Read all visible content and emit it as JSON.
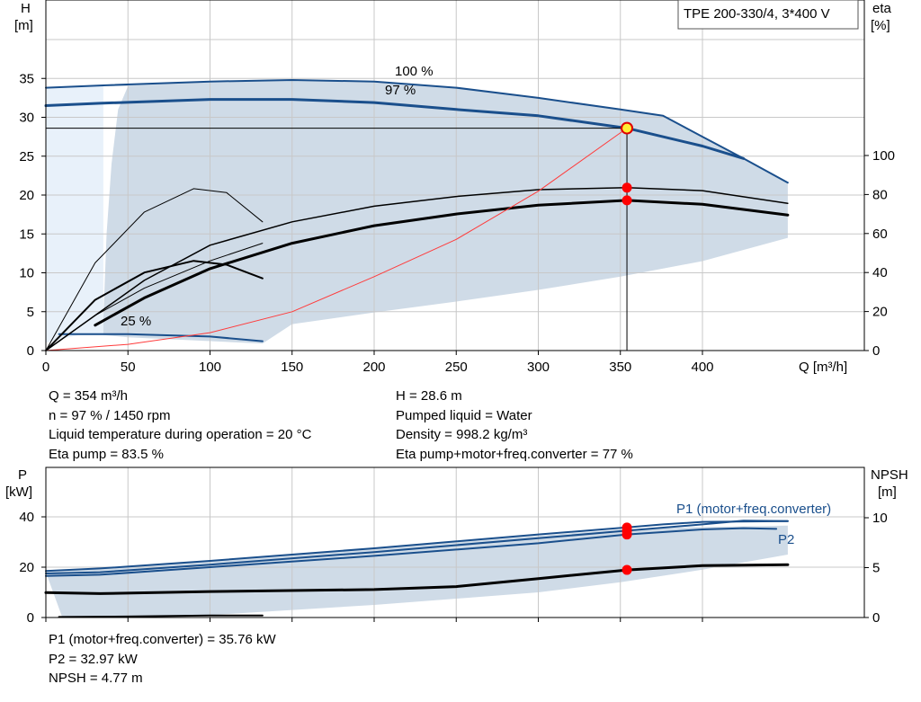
{
  "info_main": {
    "left": [
      "Q = 354 m³/h",
      "n = 97 % / 1450 rpm",
      "Liquid temperature during operation = 20 °C",
      "Eta pump = 83.5 %"
    ],
    "right": [
      "H = 28.6 m",
      "Pumped liquid = Water",
      "Density = 998.2 kg/m³",
      "Eta pump+motor+freq.converter = 77 %"
    ]
  },
  "info_bottom": [
    "P1 (motor+freq.converter) = 35.76 kW",
    "P2 = 32.97 kW",
    "NPSH = 4.77 m"
  ],
  "colors": {
    "curve": "#1a4f8c",
    "envelope": "#cfdbe7",
    "envelope_light": "#e8f1fa",
    "system": "#ff3b3b",
    "marker": "#ff0000",
    "duty": "#ffee33"
  },
  "chart_data": [
    {
      "type": "line",
      "title": "TPE 200-330/4, 3*400 V",
      "xlabel": "Q [m³/h]",
      "ylabel": "H\n[m]",
      "ylabel_right": "eta\n[%]",
      "x_ticks": [
        0,
        50,
        100,
        150,
        200,
        250,
        300,
        350,
        400
      ],
      "y_ticks": [
        0,
        5,
        10,
        15,
        20,
        25,
        30,
        35
      ],
      "y_right_ticks": [
        0,
        20,
        40,
        60,
        80,
        100
      ],
      "xlim": [
        0,
        500
      ],
      "ylim": [
        0,
        40
      ],
      "y_right_lim": [
        0,
        160
      ],
      "grid": true,
      "envelope": {
        "upper": [
          [
            35,
            34
          ],
          [
            100,
            34.6
          ],
          [
            150,
            34.8
          ],
          [
            200,
            34.6
          ],
          [
            250,
            33.8
          ],
          [
            300,
            32.5
          ],
          [
            350,
            31
          ],
          [
            376,
            30.2
          ],
          [
            400,
            27.5
          ],
          [
            425,
            24.7
          ],
          [
            452,
            21.6
          ]
        ],
        "lower": [
          [
            452,
            14.5
          ],
          [
            400,
            11.5
          ],
          [
            350,
            9.5
          ],
          [
            300,
            7.8
          ],
          [
            250,
            6.3
          ],
          [
            200,
            4.9
          ],
          [
            150,
            3.4
          ],
          [
            132,
            0.9
          ],
          [
            50,
            1.7
          ],
          [
            35,
            2
          ],
          [
            35,
            4
          ]
        ],
        "left_edge": [
          [
            35,
            4
          ],
          [
            37,
            15
          ],
          [
            40,
            24
          ],
          [
            44,
            31
          ],
          [
            50,
            34
          ]
        ]
      },
      "envelope_light": [
        [
          0,
          33.8
        ],
        [
          35,
          34
        ],
        [
          35,
          2
        ],
        [
          20,
          2
        ],
        [
          10,
          1.5
        ],
        [
          0,
          1
        ]
      ],
      "series": [
        {
          "name": "100 %",
          "axis": "H",
          "width": 2,
          "values": [
            [
              0,
              33.8
            ],
            [
              35,
              34.1
            ],
            [
              100,
              34.6
            ],
            [
              150,
              34.8
            ],
            [
              200,
              34.6
            ],
            [
              250,
              33.8
            ],
            [
              300,
              32.5
            ],
            [
              350,
              31
            ],
            [
              376,
              30.2
            ],
            [
              400,
              27.5
            ],
            [
              425,
              24.7
            ],
            [
              452,
              21.6
            ]
          ]
        },
        {
          "name": "97 %",
          "axis": "H",
          "width": 3,
          "values": [
            [
              0,
              31.5
            ],
            [
              33,
              31.8
            ],
            [
              100,
              32.3
            ],
            [
              150,
              32.3
            ],
            [
              200,
              31.9
            ],
            [
              250,
              31
            ],
            [
              300,
              30.2
            ],
            [
              354,
              28.6
            ],
            [
              400,
              26.3
            ],
            [
              425,
              24.7
            ]
          ]
        },
        {
          "name": "25 %",
          "axis": "H",
          "width": 2,
          "values": [
            [
              8,
              2.1
            ],
            [
              50,
              2.1
            ],
            [
              100,
              1.8
            ],
            [
              132,
              1.2
            ]
          ]
        },
        {
          "name": "",
          "axis": "eta",
          "width": 1.5,
          "values": [
            [
              0,
              0
            ],
            [
              30,
              18
            ],
            [
              60,
              36
            ],
            [
              100,
              54
            ],
            [
              150,
              66
            ],
            [
              200,
              74
            ],
            [
              250,
              79
            ],
            [
              300,
              82.5
            ],
            [
              354,
              83.5
            ],
            [
              400,
              82
            ],
            [
              452,
              75.5
            ]
          ]
        },
        {
          "name": "",
          "axis": "eta",
          "width": 3,
          "values": [
            [
              30,
              13
            ],
            [
              60,
              27
            ],
            [
              100,
              42
            ],
            [
              150,
              55
            ],
            [
              200,
              64
            ],
            [
              250,
              70
            ],
            [
              300,
              74.5
            ],
            [
              354,
              77
            ],
            [
              400,
              75
            ],
            [
              452,
              69.5
            ]
          ]
        },
        {
          "name": "",
          "axis": "eta",
          "width": 1,
          "values": [
            [
              0,
              0
            ],
            [
              30,
              45
            ],
            [
              60,
              71
            ],
            [
              90,
              83
            ],
            [
              110,
              81
            ],
            [
              132,
              66
            ]
          ]
        },
        {
          "name": "",
          "axis": "eta",
          "width": 2,
          "values": [
            [
              0,
              0
            ],
            [
              30,
              26
            ],
            [
              60,
              40
            ],
            [
              90,
              46
            ],
            [
              110,
              44
            ],
            [
              132,
              37
            ]
          ]
        },
        {
          "name": "",
          "axis": "eta",
          "width": 1,
          "values": [
            [
              0,
              0
            ],
            [
              30,
              18
            ],
            [
              60,
              32
            ],
            [
              100,
              46
            ],
            [
              132,
              55
            ]
          ]
        },
        {
          "name": "",
          "axis": "H",
          "width": 1,
          "system": true,
          "values": [
            [
              0,
              0
            ],
            [
              50,
              0.8
            ],
            [
              100,
              2.3
            ],
            [
              150,
              5
            ],
            [
              200,
              9.5
            ],
            [
              250,
              14.3
            ],
            [
              300,
              20.5
            ],
            [
              354,
              28.6
            ]
          ]
        }
      ],
      "duty_point": {
        "q": 354,
        "h": 28.6
      },
      "markers_eta": [
        [
          354,
          83.5
        ],
        [
          354,
          77
        ]
      ]
    },
    {
      "type": "line",
      "xlabel": "",
      "ylabel": "P\n[kW]",
      "ylabel_right": "NPSH\n[m]",
      "y_ticks": [
        0,
        20,
        40
      ],
      "y_right_ticks": [
        0,
        5,
        10
      ],
      "xlim": [
        0,
        500
      ],
      "ylim": [
        0,
        60
      ],
      "y_right_lim": [
        0,
        15
      ],
      "grid": true,
      "envelope": [
        [
          0,
          18
        ],
        [
          50,
          20
        ],
        [
          150,
          25
        ],
        [
          250,
          30
        ],
        [
          350,
          35
        ],
        [
          400,
          36
        ],
        [
          452,
          36.5
        ],
        [
          452,
          25
        ],
        [
          400,
          19
        ],
        [
          350,
          14
        ],
        [
          300,
          10
        ],
        [
          200,
          5
        ],
        [
          100,
          1
        ],
        [
          10,
          0
        ]
      ],
      "series": [
        {
          "name": "P1 (motor+freq.converter)",
          "axis": "P",
          "width": 2,
          "values": [
            [
              0,
              18.5
            ],
            [
              33,
              19.5
            ],
            [
              100,
              22.5
            ],
            [
              200,
              27.5
            ],
            [
              300,
              33
            ],
            [
              354,
              35.8
            ],
            [
              376,
              37
            ],
            [
              400,
              38
            ],
            [
              452,
              38.3
            ]
          ]
        },
        {
          "name": "",
          "axis": "P",
          "width": 2,
          "values": [
            [
              0,
              17.5
            ],
            [
              33,
              18
            ],
            [
              100,
              21
            ],
            [
              200,
              26
            ],
            [
              300,
              31.5
            ],
            [
              354,
              34.5
            ],
            [
              400,
              37
            ],
            [
              425,
              38.5
            ],
            [
              452,
              38.3
            ]
          ]
        },
        {
          "name": "P2",
          "axis": "P",
          "width": 2,
          "values": [
            [
              0,
              16.5
            ],
            [
              33,
              17
            ],
            [
              100,
              20
            ],
            [
              200,
              24.5
            ],
            [
              300,
              29.5
            ],
            [
              354,
              33
            ],
            [
              400,
              35
            ],
            [
              425,
              35.5
            ],
            [
              445,
              35.2
            ]
          ]
        },
        {
          "name": "",
          "axis": "NPSH",
          "width": 3,
          "values": [
            [
              0,
              2.5
            ],
            [
              33,
              2.4
            ],
            [
              100,
              2.6
            ],
            [
              200,
              2.8
            ],
            [
              250,
              3.1
            ],
            [
              300,
              3.9
            ],
            [
              354,
              4.77
            ],
            [
              400,
              5.2
            ],
            [
              452,
              5.3
            ]
          ]
        },
        {
          "name": "",
          "axis": "NPSH",
          "width": 2,
          "values": [
            [
              8,
              0.05
            ],
            [
              50,
              0.1
            ],
            [
              100,
              0.2
            ],
            [
              132,
              0.2
            ]
          ]
        }
      ],
      "markers_p": [
        [
          354,
          35.76
        ],
        [
          354,
          32.97
        ]
      ],
      "markers_npsh": [
        [
          354,
          4.77
        ]
      ]
    }
  ]
}
